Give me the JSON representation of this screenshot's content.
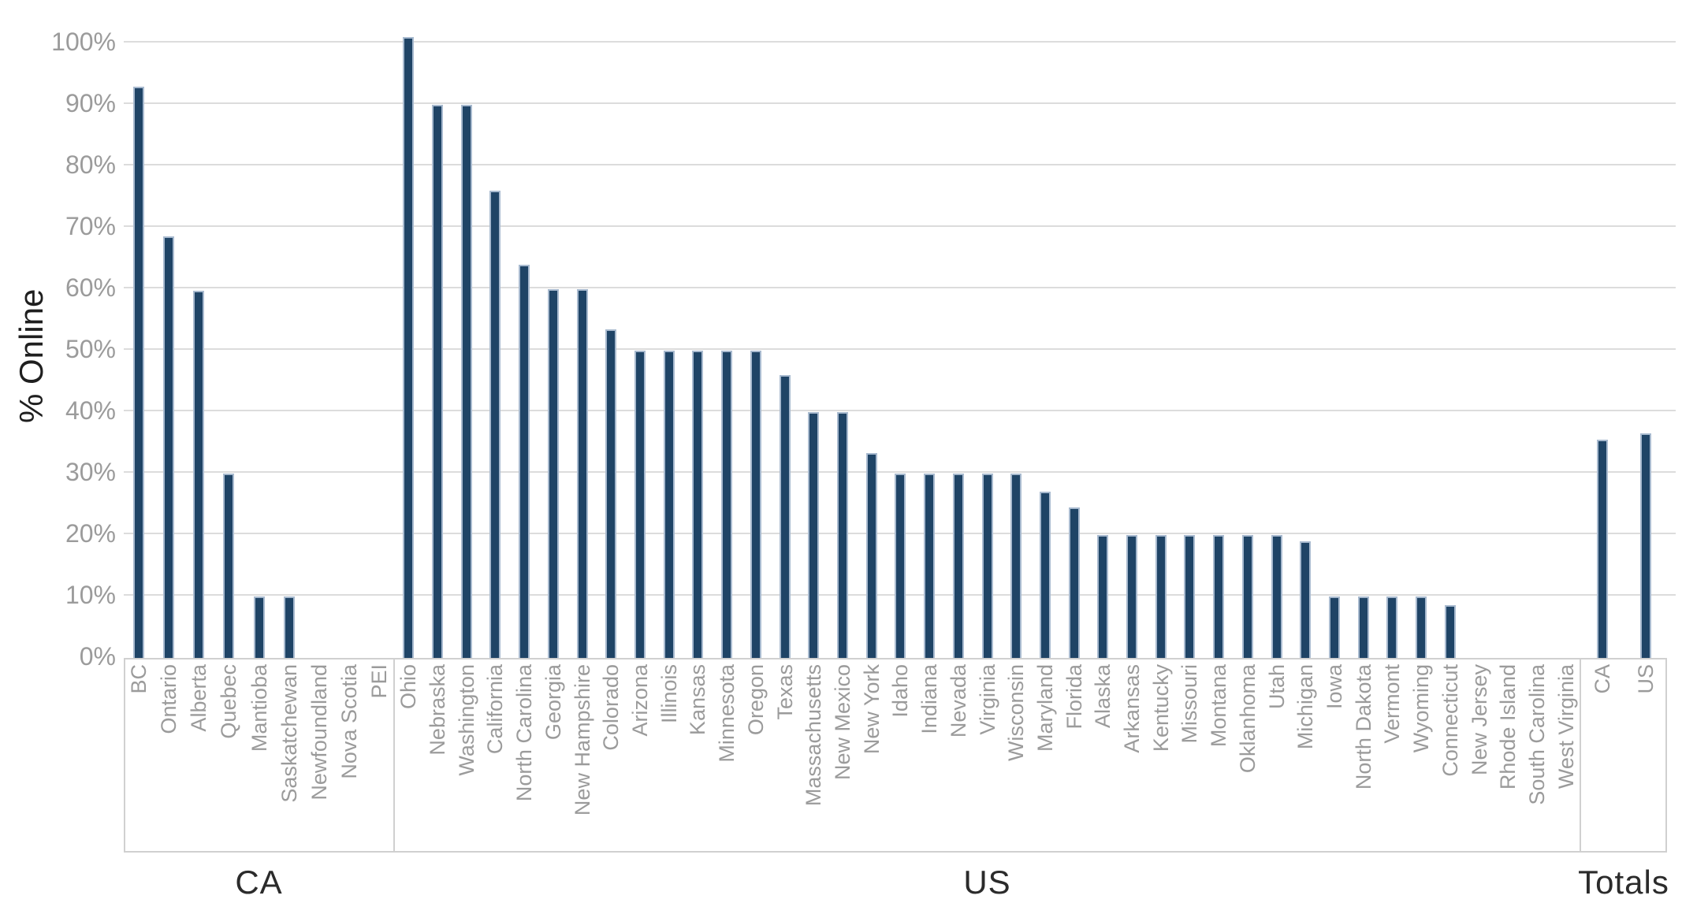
{
  "chart_data": {
    "type": "bar",
    "title": "",
    "ylabel": "% Online",
    "xlabel": "",
    "ylim": [
      0,
      100
    ],
    "yticks": [
      0,
      10,
      20,
      30,
      40,
      50,
      60,
      70,
      80,
      90,
      100
    ],
    "ytick_suffix": "%",
    "grid": true,
    "legend": false,
    "bar_color": "#1f4466",
    "bar_edge_color": "#a8bacf",
    "gridline_color": "#dcdcdc",
    "tick_label_color": "#9b9b9b",
    "group_label_color": "#2b2b2b",
    "groups": [
      {
        "label": "CA",
        "categories": [
          "BC",
          "Ontario",
          "Alberta",
          "Quebec",
          "Mantioba",
          "Saskatchewan",
          "Newfoundland",
          "Nova Scotia",
          "PEI"
        ],
        "values": [
          93,
          68.6,
          59.7,
          30,
          10,
          10,
          0,
          0,
          0
        ]
      },
      {
        "label": "US",
        "categories": [
          "Ohio",
          "Nebraska",
          "Washington",
          "California",
          "North Carolina",
          "Georgia",
          "New Hampshire",
          "Colorado",
          "Arizona",
          "Illinois",
          "Kansas",
          "Minnesota",
          "Oregon",
          "Texas",
          "Massachusetts",
          "New Mexico",
          "New York",
          "Idaho",
          "Indiana",
          "Nevada",
          "Virginia",
          "Wisconsin",
          "Maryland",
          "Florida",
          "Alaska",
          "Arkansas",
          "Kentucky",
          "Missouri",
          "Montana",
          "Oklanhoma",
          "Utah",
          "Michigan",
          "Iowa",
          "North Dakota",
          "Vermont",
          "Wyoming",
          "Connecticut",
          "New Jersey",
          "Rhode Island",
          "South Carolina",
          "West Virginia"
        ],
        "values": [
          101,
          90,
          90,
          76,
          64,
          60,
          60,
          53.5,
          50,
          50,
          50,
          50,
          50,
          46,
          40,
          40,
          33.3,
          30,
          30,
          30,
          30,
          30,
          27,
          24.5,
          20,
          20,
          20,
          20,
          20,
          20,
          20,
          19,
          10,
          10,
          10,
          10,
          8.6,
          0,
          0,
          0,
          0
        ]
      },
      {
        "label": "Totals",
        "categories": [
          "CA",
          "US"
        ],
        "values": [
          35.5,
          36.5
        ]
      }
    ]
  }
}
